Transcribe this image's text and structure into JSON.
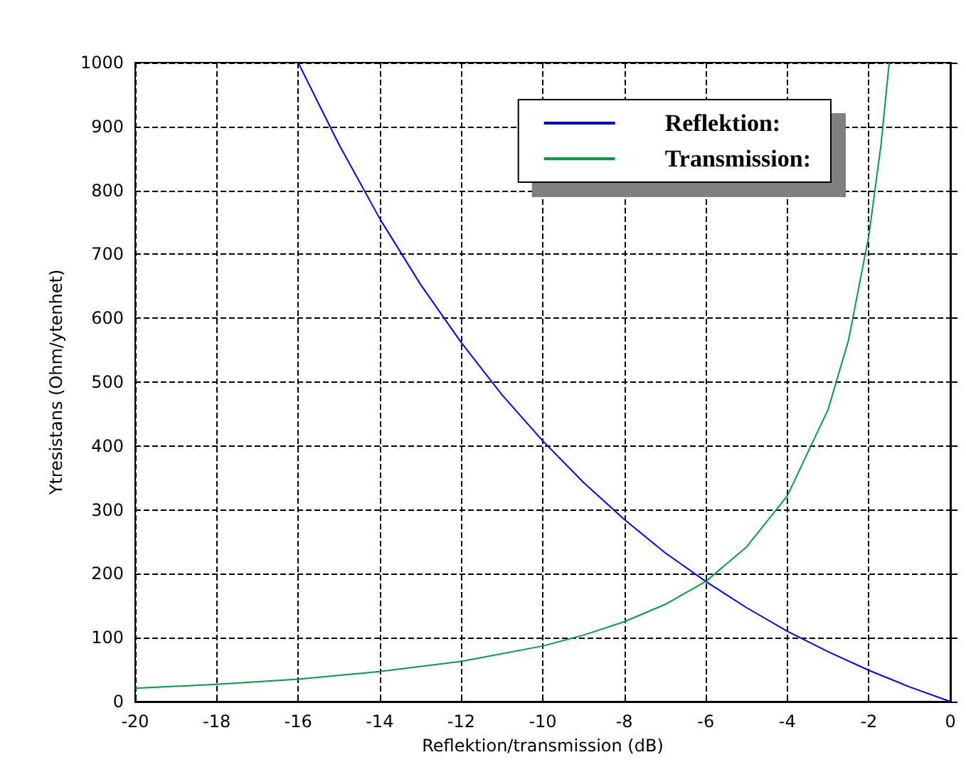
{
  "chart_data": {
    "type": "line",
    "xlabel": "Reflektion/transmission (dB)",
    "ylabel": "Ytresistans (Ohm/ytenhet)",
    "xlim": [
      -20,
      0
    ],
    "xticks": [
      -20,
      -18,
      -16,
      -14,
      -12,
      -10,
      -8,
      -6,
      -4,
      -2,
      0
    ],
    "ylim": [
      0,
      1000
    ],
    "yticks": [
      0,
      100,
      200,
      300,
      400,
      500,
      600,
      700,
      800,
      900,
      1000
    ],
    "grid": true,
    "legend": "top right",
    "marker": "none",
    "line_style": "solid",
    "series": [
      {
        "name": "Reflektion:",
        "color": "#0000ff",
        "x": [
          -16,
          -15,
          -14,
          -13,
          -12,
          -11,
          -10,
          -9,
          -8,
          -7,
          -6,
          -5,
          -4,
          -3,
          -2,
          -1,
          0
        ],
        "values": [
          1000,
          872,
          756,
          653,
          562,
          480,
          408,
          343,
          285,
          233,
          188,
          147,
          110,
          78,
          49,
          23,
          0
        ]
      },
      {
        "name": "Transmission:",
        "color": "#00a040",
        "x": [
          -20,
          -18,
          -16,
          -14,
          -12,
          -10,
          -9,
          -8,
          -7,
          -6,
          -5,
          -4,
          -3,
          -2.5,
          -2,
          -1.7,
          -1.5
        ],
        "values": [
          21,
          27,
          35,
          47,
          63,
          87,
          104,
          125,
          152,
          188,
          242,
          322,
          457,
          565,
          729,
          872,
          1000
        ]
      }
    ]
  }
}
